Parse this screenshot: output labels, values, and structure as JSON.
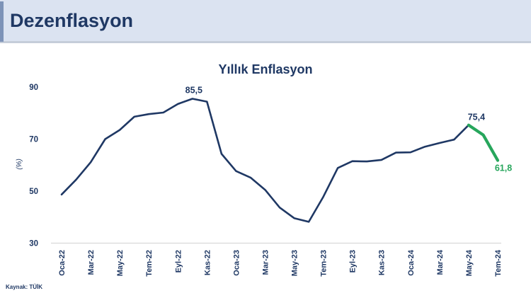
{
  "header": {
    "title": "Dezenflasyon"
  },
  "chart_data": {
    "type": "line",
    "title": "Yıllık Enflasyon",
    "ylabel": "(%)",
    "ylim": [
      30,
      90
    ],
    "yticks": [
      30,
      50,
      70,
      90
    ],
    "x_tick_labels": [
      "Oca-22",
      "Mar-22",
      "May-22",
      "Tem-22",
      "Eyl-22",
      "Kas-22",
      "Oca-23",
      "Mar-23",
      "May-23",
      "Tem-23",
      "Eyl-23",
      "Kas-23",
      "Oca-24",
      "Mar-24",
      "May-24",
      "Tem-24"
    ],
    "x_tick_every": 2,
    "values": [
      48.7,
      54.4,
      61.1,
      70.0,
      73.5,
      78.6,
      79.6,
      80.2,
      83.5,
      85.5,
      84.4,
      64.3,
      57.7,
      55.2,
      50.5,
      43.7,
      39.6,
      38.2,
      47.8,
      58.9,
      61.5,
      61.4,
      62.0,
      64.8,
      64.9,
      67.1,
      68.5,
      69.8,
      75.4,
      71.6,
      61.8
    ],
    "highlight_from_index": 28,
    "series": [
      {
        "name": "yillik-enflasyon",
        "color": "#1f3864"
      },
      {
        "name": "dezenflasyon-highlight",
        "color": "#27a65c"
      }
    ],
    "annotations": [
      {
        "label": "85,5",
        "index": 9,
        "value": 85.5,
        "color": "#1f3864",
        "position": "above"
      },
      {
        "label": "75,4",
        "index": 28,
        "value": 75.4,
        "color": "#1f3864",
        "position": "above-right"
      },
      {
        "label": "61,8",
        "index": 30,
        "value": 61.8,
        "color": "#27a65c",
        "position": "below-right"
      }
    ],
    "grid": false,
    "legend": false
  },
  "source": {
    "label": "Kaynak: TÜİK"
  },
  "colors": {
    "line": "#1f3864",
    "highlight": "#27a65c",
    "text": "#1f3864",
    "header_bg": "#dbe3f1",
    "accent_bar": "#7d93b8",
    "axis_line": "#d9d9d9"
  }
}
